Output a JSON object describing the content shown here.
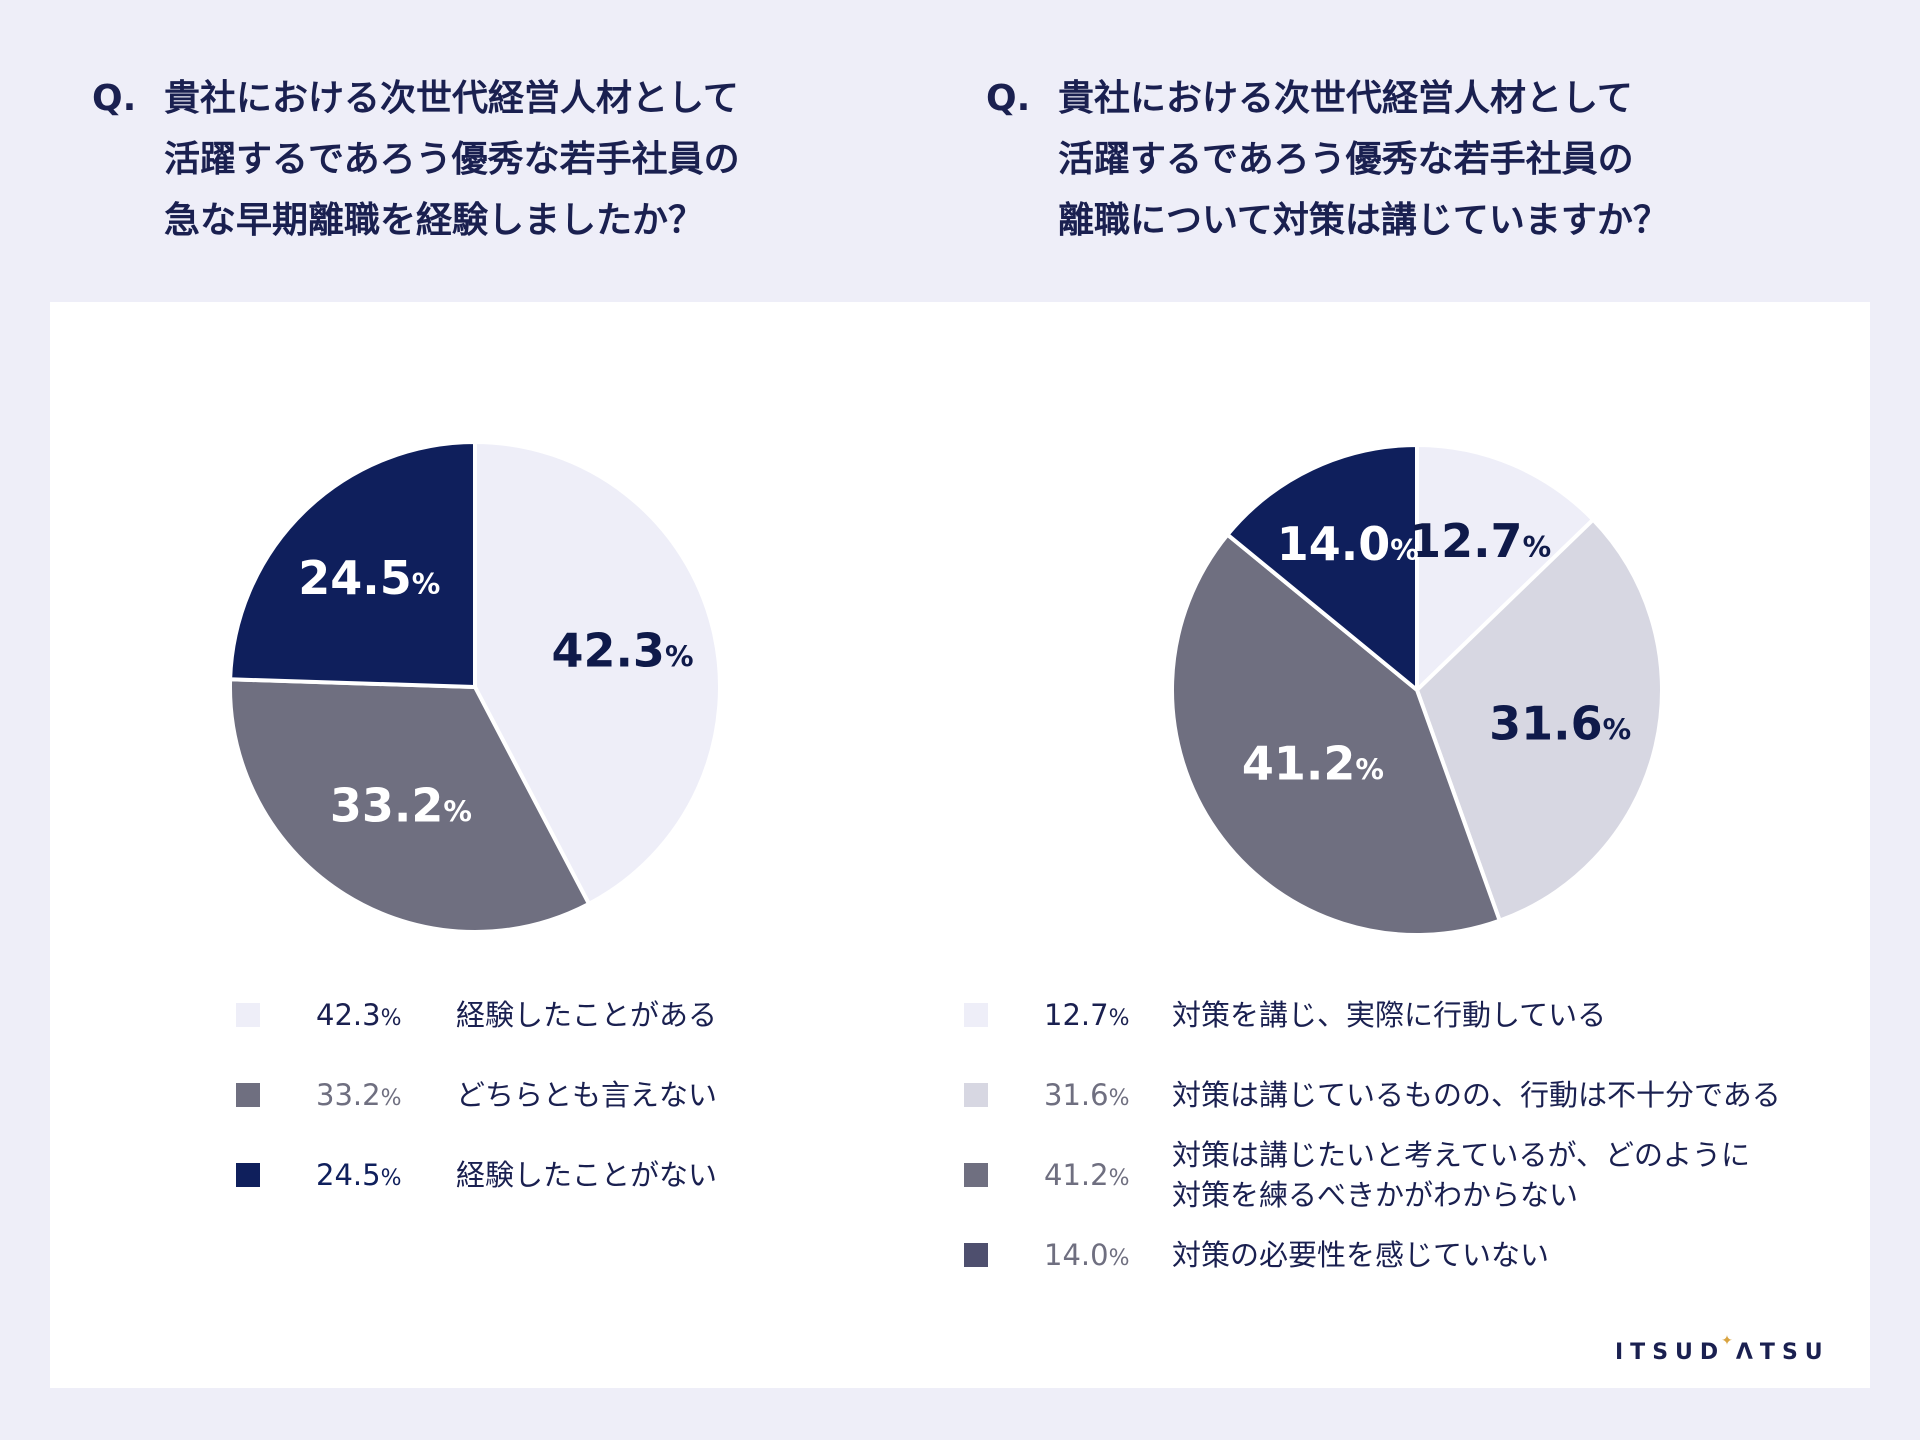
{
  "questions": [
    {
      "prefix": "Q.",
      "lines": [
        "貴社における次世代経営人材として",
        "活躍するであろう優秀な若手社員の",
        "急な早期離職を経験しましたか？"
      ]
    },
    {
      "prefix": "Q.",
      "lines": [
        "貴社における次世代経営人材として",
        "活躍するであろう優秀な若手社員の",
        "離職について対策は講じていますか？"
      ]
    }
  ],
  "chart_data": [
    {
      "type": "pie",
      "title": "貴社における次世代経営人材として活躍するであろう優秀な若手社員の急な早期離職を経験しましたか？",
      "unit": "%",
      "slices": [
        {
          "label": "経験したことがある",
          "value": 42.3,
          "display": "42.3",
          "color": "#eeeef8",
          "text_color": "#0f1a4a",
          "legend_pct_color": "#1a2050"
        },
        {
          "label": "どちらとも言えない",
          "value": 33.2,
          "display": "33.2",
          "color": "#6f6f80",
          "text_color": "#ffffff",
          "legend_pct_color": "#6f6f80"
        },
        {
          "label": "経験したことがない",
          "value": 24.5,
          "display": "24.5",
          "color": "#0f1f5c",
          "text_color": "#ffffff",
          "legend_pct_color": "#0f1f5c"
        }
      ]
    },
    {
      "type": "pie",
      "title": "貴社における次世代経営人材として活躍するであろう優秀な若手社員の離職について対策は講じていますか？",
      "unit": "%",
      "slices": [
        {
          "label": "対策を講じ、実際に行動している",
          "value": 12.7,
          "display": "12.7",
          "color": "#eeeef8",
          "text_color": "#0f1a4a",
          "legend_pct_color": "#1a2050"
        },
        {
          "label": "対策は講じているものの、行動は不十分である",
          "value": 31.6,
          "display": "31.6",
          "color": "#d7d7e2",
          "text_color": "#0f1a4a",
          "legend_pct_color": "#6f6f80"
        },
        {
          "label": "対策は講じたいと考えているが、どのように 対策を練るべきかがわからない",
          "lines": [
            "対策は講じたいと考えているが、どのように",
            "対策を練るべきかがわからない"
          ],
          "value": 41.2,
          "display": "41.2",
          "color": "#6f6f80",
          "text_color": "#ffffff",
          "legend_pct_color": "#6f6f80"
        },
        {
          "label": "対策の必要性を感じていない",
          "value": 14.0,
          "display": "14.0",
          "color": "#0f1f5c",
          "legend_color": "#4e4f6e",
          "text_color": "#ffffff",
          "legend_pct_color": "#6f6f80"
        }
      ]
    }
  ],
  "logo": {
    "text_before": "ITSUD",
    "star": "✦",
    "text_after": "ΛTSU"
  }
}
